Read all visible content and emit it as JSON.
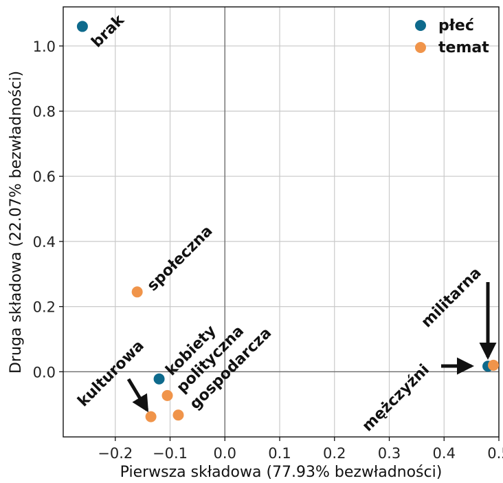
{
  "chart_data": {
    "type": "scatter",
    "xlabel": "Pierwsza składowa (77.93% bezwładności)",
    "ylabel": "Druga składowa (22.07% bezwładności)",
    "xlim": [
      -0.295,
      0.5
    ],
    "ylim": [
      -0.2,
      1.12
    ],
    "x_ticks": [
      -0.2,
      -0.1,
      0.0,
      0.1,
      0.2,
      0.3,
      0.4,
      0.5
    ],
    "x_tick_labels": [
      "−0.2",
      "−0.1",
      "0.0",
      "0.1",
      "0.2",
      "0.3",
      "0.4",
      "0.5"
    ],
    "y_ticks": [
      0.0,
      0.2,
      0.4,
      0.6,
      0.8,
      1.0
    ],
    "y_tick_labels": [
      "0.0",
      "0.2",
      "0.4",
      "0.6",
      "0.8",
      "1.0"
    ],
    "grid": true,
    "zero_lines": true,
    "legend_position": "top-right",
    "series": [
      {
        "name": "płeć",
        "color": "#0e6a8c",
        "points": [
          {
            "label": "brak",
            "x": -0.26,
            "y": 1.06
          },
          {
            "label": "kobiety",
            "x": -0.12,
            "y": -0.022
          },
          {
            "label": "mężczyźni",
            "x": 0.48,
            "y": 0.017
          }
        ]
      },
      {
        "name": "temat",
        "color": "#f0944a",
        "points": [
          {
            "label": "społeczna",
            "x": -0.16,
            "y": 0.245
          },
          {
            "label": "polityczna",
            "x": -0.105,
            "y": -0.073
          },
          {
            "label": "gospodarcza",
            "x": -0.085,
            "y": -0.133
          },
          {
            "label": "kulturowa",
            "x": -0.135,
            "y": -0.138
          },
          {
            "label": "militarna",
            "x": 0.49,
            "y": 0.02
          }
        ]
      }
    ]
  }
}
